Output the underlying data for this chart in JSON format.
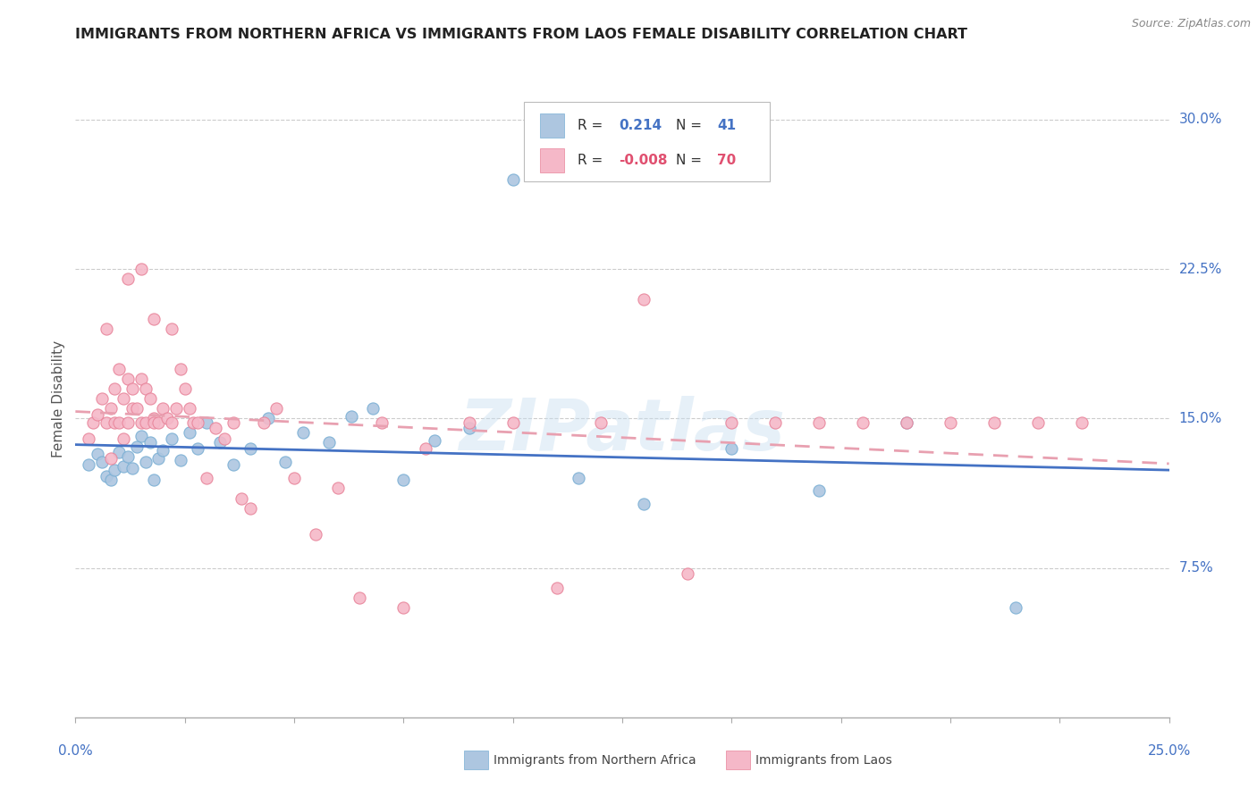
{
  "title": "IMMIGRANTS FROM NORTHERN AFRICA VS IMMIGRANTS FROM LAOS FEMALE DISABILITY CORRELATION CHART",
  "source": "Source: ZipAtlas.com",
  "ylabel": "Female Disability",
  "xlim": [
    0.0,
    0.25
  ],
  "ylim": [
    0.0,
    0.32
  ],
  "r_blue": "0.214",
  "n_blue": "41",
  "r_pink": "-0.008",
  "n_pink": "70",
  "color_blue": "#adc6e0",
  "color_pink": "#f5b8c8",
  "edge_blue": "#7aafd4",
  "edge_pink": "#e8849a",
  "trendline_blue": "#4472c4",
  "trendline_pink": "#e8a0b0",
  "grid_color": "#cccccc",
  "ytick_values": [
    0.0,
    0.075,
    0.15,
    0.225,
    0.3
  ],
  "ytick_labels": [
    "",
    "7.5%",
    "15.0%",
    "22.5%",
    "30.0%"
  ],
  "legend_blue_label": "Immigrants from Northern Africa",
  "legend_pink_label": "Immigrants from Laos",
  "watermark": "ZIPatlas"
}
